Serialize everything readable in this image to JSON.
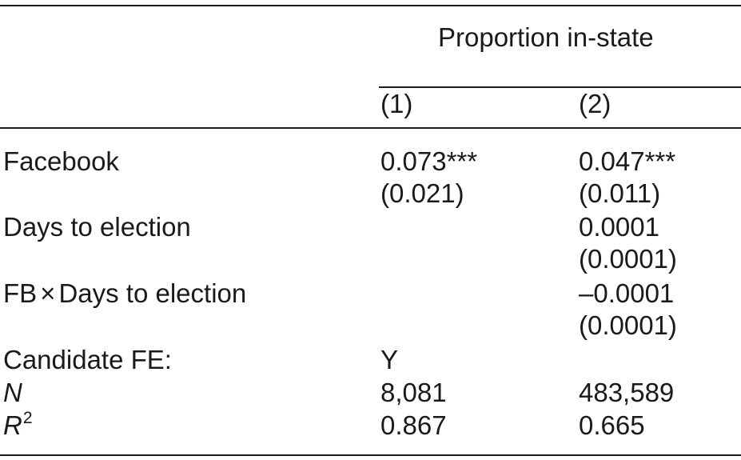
{
  "header": {
    "group_label": "Proportion in-state",
    "columns": [
      "(1)",
      "(2)"
    ]
  },
  "rows": {
    "facebook": {
      "label": "Facebook",
      "col1": "0.073***",
      "col1_se": "(0.021)",
      "col2": "0.047***",
      "col2_se": "(0.011)"
    },
    "days": {
      "label": "Days to election",
      "col1": "",
      "col1_se": "",
      "col2": "0.0001",
      "col2_se": "(0.0001)"
    },
    "interaction": {
      "label_prefix": "FB",
      "times_symbol": "×",
      "label_suffix": "Days to election",
      "col1": "",
      "col1_se": "",
      "col2": "–0.0001",
      "col2_se": "(0.0001)"
    },
    "candidate_fe": {
      "label": "Candidate FE:",
      "col1": "Y",
      "col2": ""
    },
    "n": {
      "label": "N",
      "col1": "8,081",
      "col2": "483,589"
    },
    "r2": {
      "label": "R",
      "superscript": "2",
      "col1": "0.867",
      "col2": "0.665"
    }
  }
}
